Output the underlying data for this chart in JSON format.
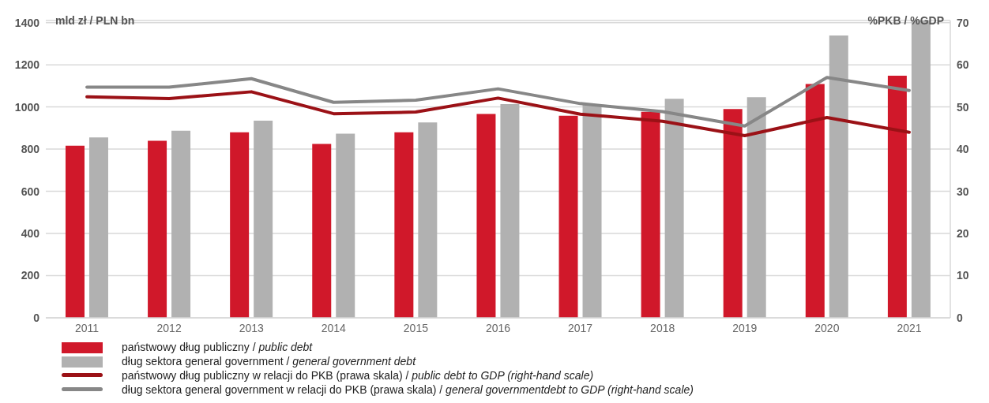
{
  "chart_data": {
    "type": "bar",
    "categories": [
      "2011",
      "2012",
      "2013",
      "2014",
      "2015",
      "2016",
      "2017",
      "2018",
      "2019",
      "2020",
      "2021"
    ],
    "ylabel": "mld zł / PLN bn",
    "y2label": "%PKB / %GDP",
    "ylim": [
      0,
      1410
    ],
    "yticks": [
      0,
      200,
      400,
      600,
      800,
      1000,
      1200,
      1400
    ],
    "y2lim": [
      0,
      70.5
    ],
    "y2ticks": [
      0,
      10,
      20,
      30,
      40,
      50,
      60,
      70
    ],
    "grid": "y",
    "legend": "bottom",
    "series": [
      {
        "name": "państwowy dług publiczny / public debt",
        "color": "#d0182a",
        "values": [
          816,
          840,
          880,
          825,
          880,
          967,
          958,
          977,
          990,
          1109,
          1148
        ]
      },
      {
        "name": "dług sektora general government / general government debt",
        "color": "#b1b1b1",
        "values": [
          856,
          887,
          935,
          873,
          927,
          1014,
          1010,
          1039,
          1046,
          1339,
          1409
        ]
      },
      {
        "name": "państwowy dług publiczny w relacji do PKB (prawa skala) / public debt to GDP (right-hand scale)",
        "type": "line",
        "axis": "y2",
        "color": "#9b1116",
        "values": [
          52.4,
          52.0,
          53.6,
          48.4,
          48.8,
          52.1,
          48.3,
          46.6,
          43.2,
          47.5,
          44.0
        ]
      },
      {
        "name": "dług sektora general government w relacji do PKB (prawa skala) / general governmentdebt to GDP (right-hand scale)",
        "type": "line",
        "axis": "y2",
        "color": "#878787",
        "values": [
          54.7,
          54.7,
          56.7,
          51.1,
          51.6,
          54.3,
          50.8,
          48.9,
          45.5,
          57.0,
          53.9
        ]
      }
    ]
  }
}
